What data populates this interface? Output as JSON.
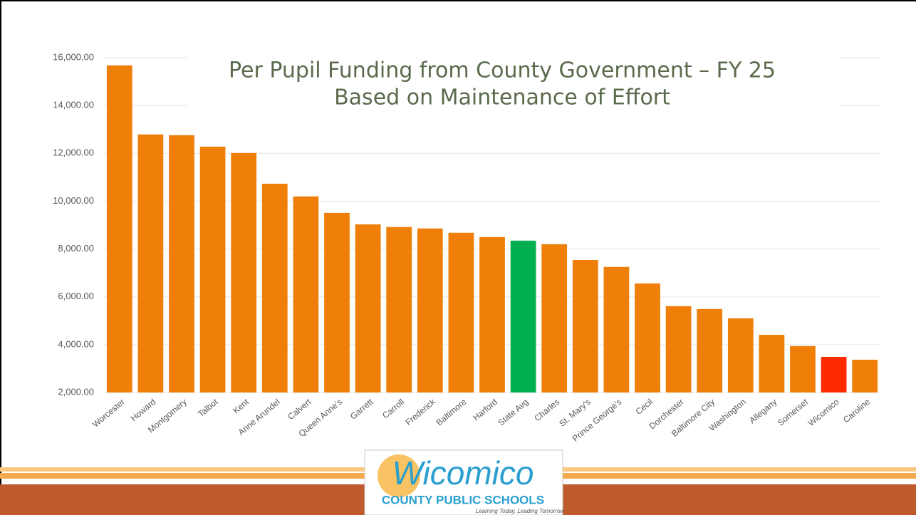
{
  "chart_data": {
    "type": "bar",
    "title": "Per Pupil Funding from County Government – FY 25",
    "subtitle": "Based on Maintenance of Effort",
    "categories": [
      "Worcester",
      "Howard",
      "Montgomery",
      "Talbot",
      "Kent",
      "Anne Arundel",
      "Calvert",
      "Queen Anne's",
      "Garrett",
      "Carroll",
      "Frederick",
      "Baltimore",
      "Harford",
      "State Avg",
      "Charles",
      "St. Mary's",
      "Prince George's",
      "Cecil",
      "Dorchester",
      "Baltimore City",
      "Washington",
      "Allegany",
      "Somerset",
      "Wicomico",
      "Caroline"
    ],
    "values": [
      15680,
      12790,
      12760,
      12280,
      12015,
      10730,
      10200,
      9510,
      9030,
      8920,
      8860,
      8680,
      8500,
      8350,
      8200,
      7540,
      7250,
      6560,
      5610,
      5490,
      5100,
      4410,
      3940,
      3490,
      3370
    ],
    "colors": [
      "#f07f09",
      "#f07f09",
      "#f07f09",
      "#f07f09",
      "#f07f09",
      "#f07f09",
      "#f07f09",
      "#f07f09",
      "#f07f09",
      "#f07f09",
      "#f07f09",
      "#f07f09",
      "#f07f09",
      "#00b050",
      "#f07f09",
      "#f07f09",
      "#f07f09",
      "#f07f09",
      "#f07f09",
      "#f07f09",
      "#f07f09",
      "#f07f09",
      "#f07f09",
      "#ff2a00",
      "#f07f09"
    ],
    "ylim": [
      2000,
      16000
    ],
    "yticks": [
      {
        "value": 2000,
        "label": "2,000.00"
      },
      {
        "value": 4000,
        "label": "4,000.00"
      },
      {
        "value": 6000,
        "label": "6,000.00"
      },
      {
        "value": 8000,
        "label": "8,000.00"
      },
      {
        "value": 10000,
        "label": "10,000.00"
      },
      {
        "value": 12000,
        "label": "12,000.00"
      },
      {
        "value": 14000,
        "label": "14,000.00"
      },
      {
        "value": 16000,
        "label": "16,000.00"
      }
    ],
    "grid": true
  },
  "footer": {
    "logo": "Wicomico",
    "logo_subtitle": "COUNTY PUBLIC SCHOOLS",
    "tagline": "Learning Today, Leading Tomorrow"
  }
}
